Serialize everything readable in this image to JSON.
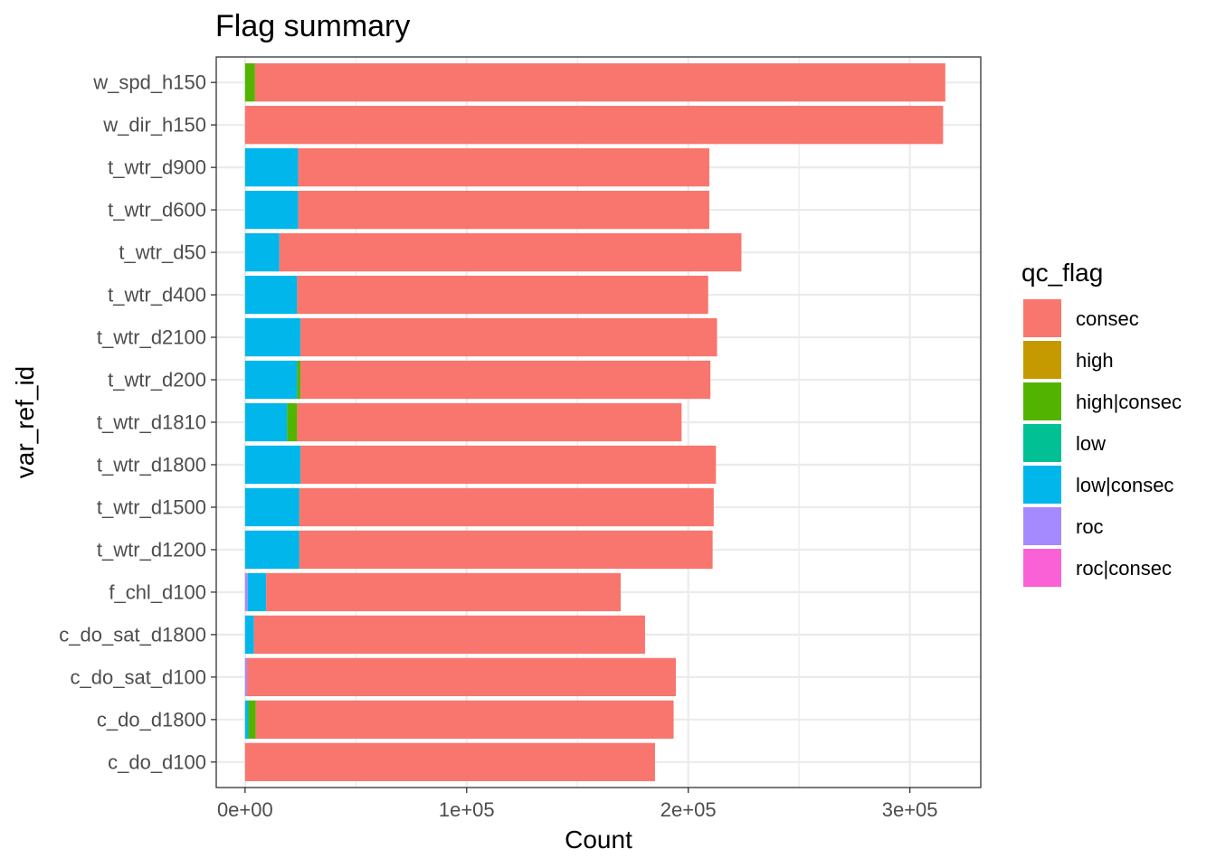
{
  "chart_data": {
    "type": "bar",
    "orientation": "horizontal",
    "stacked": true,
    "title": "Flag summary",
    "xlabel": "Count",
    "ylabel": "var_ref_id",
    "xlim": [
      -13000,
      332000
    ],
    "x_ticks": [
      {
        "value": 0,
        "label": "0e+00"
      },
      {
        "value": 100000,
        "label": "1e+05"
      },
      {
        "value": 200000,
        "label": "2e+05"
      },
      {
        "value": 300000,
        "label": "3e+05"
      }
    ],
    "x_minor_ticks": [
      50000,
      150000,
      250000
    ],
    "grid": true,
    "theme": "bw",
    "legend": {
      "title": "qc_flag",
      "placement": "right",
      "entries": [
        {
          "key": "consec",
          "label": "consec",
          "color": "#F8766D"
        },
        {
          "key": "high",
          "label": "high",
          "color": "#C49A00"
        },
        {
          "key": "high|consec",
          "label": "high|consec",
          "color": "#53B400"
        },
        {
          "key": "low",
          "label": "low",
          "color": "#00C094"
        },
        {
          "key": "low|consec",
          "label": "low|consec",
          "color": "#00B6EB"
        },
        {
          "key": "roc",
          "label": "roc",
          "color": "#A58AFF"
        },
        {
          "key": "roc|consec",
          "label": "roc|consec",
          "color": "#FB61D7"
        }
      ]
    },
    "categories": [
      "w_spd_h150",
      "w_dir_h150",
      "t_wtr_d900",
      "t_wtr_d600",
      "t_wtr_d50",
      "t_wtr_d400",
      "t_wtr_d2100",
      "t_wtr_d200",
      "t_wtr_d1810",
      "t_wtr_d1800",
      "t_wtr_d1500",
      "t_wtr_d1200",
      "f_chl_d100",
      "c_do_sat_d1800",
      "c_do_sat_d100",
      "c_do_d1800",
      "c_do_d100"
    ],
    "series": [
      {
        "name": "roc",
        "values": [
          0,
          0,
          0,
          0,
          0,
          0,
          0,
          0,
          0,
          0,
          0,
          0,
          1200,
          0,
          900,
          0,
          0
        ]
      },
      {
        "name": "low|consec",
        "values": [
          0,
          0,
          24000,
          24000,
          15500,
          23500,
          25000,
          23500,
          19000,
          25000,
          24500,
          24500,
          8300,
          4000,
          0,
          1500,
          0
        ]
      },
      {
        "name": "low",
        "values": [
          0,
          0,
          0,
          0,
          0,
          0,
          0,
          0,
          0,
          0,
          0,
          0,
          0,
          0,
          0,
          0,
          0
        ]
      },
      {
        "name": "high|consec",
        "values": [
          4500,
          0,
          0,
          0,
          0,
          0,
          0,
          1500,
          4500,
          0,
          0,
          0,
          0,
          0,
          0,
          3300,
          0
        ]
      },
      {
        "name": "high",
        "values": [
          0,
          0,
          0,
          0,
          0,
          0,
          0,
          0,
          0,
          0,
          0,
          0,
          0,
          0,
          0,
          0,
          0
        ]
      },
      {
        "name": "consec",
        "values": [
          311500,
          315000,
          185500,
          185500,
          208500,
          185500,
          188000,
          185000,
          173500,
          187500,
          187000,
          186500,
          160000,
          176500,
          193500,
          188600,
          185000
        ]
      }
    ]
  }
}
